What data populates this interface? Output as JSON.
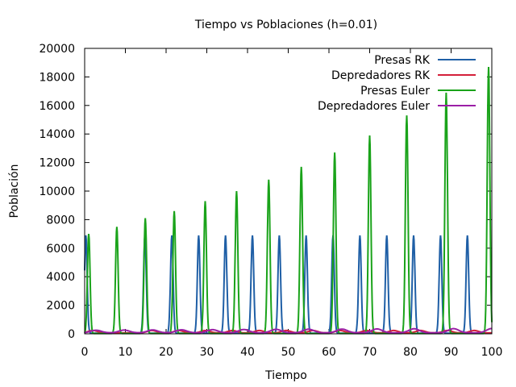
{
  "chart_data": {
    "type": "line",
    "title": "Tiempo vs Poblaciones (h=0.01)",
    "xlabel": "Tiempo",
    "ylabel": "Población",
    "xlim": [
      0,
      100
    ],
    "ylim": [
      0,
      20000
    ],
    "xticks": [
      0,
      10,
      20,
      30,
      40,
      50,
      60,
      70,
      80,
      90,
      100
    ],
    "yticks": [
      0,
      2000,
      4000,
      6000,
      8000,
      10000,
      12000,
      14000,
      16000,
      18000,
      20000
    ],
    "grid": false,
    "legend_position": "top-right",
    "series": [
      {
        "name": "Presas RK",
        "color": "#1f5fa6",
        "peaks": [
          {
            "t": 0.3,
            "v": 6900
          },
          {
            "t": 14.8,
            "v": 6900
          },
          {
            "t": 21.4,
            "v": 6900
          },
          {
            "t": 28.0,
            "v": 6900
          },
          {
            "t": 34.6,
            "v": 6900
          },
          {
            "t": 41.2,
            "v": 6900
          },
          {
            "t": 47.8,
            "v": 6900
          },
          {
            "t": 54.4,
            "v": 6900
          },
          {
            "t": 61.0,
            "v": 6900
          },
          {
            "t": 67.6,
            "v": 6900
          },
          {
            "t": 74.2,
            "v": 6900
          },
          {
            "t": 80.8,
            "v": 6900
          },
          {
            "t": 87.4,
            "v": 6900
          },
          {
            "t": 94.0,
            "v": 6900
          }
        ]
      },
      {
        "name": "Depredadores RK",
        "color": "#d41f3a",
        "peaks": [
          {
            "t": 2.0,
            "v": 230
          },
          {
            "t": 16.5,
            "v": 230
          },
          {
            "t": 23.1,
            "v": 230
          },
          {
            "t": 29.7,
            "v": 230
          },
          {
            "t": 36.3,
            "v": 230
          },
          {
            "t": 42.9,
            "v": 230
          },
          {
            "t": 49.5,
            "v": 230
          },
          {
            "t": 56.1,
            "v": 230
          },
          {
            "t": 62.7,
            "v": 230
          },
          {
            "t": 69.3,
            "v": 230
          },
          {
            "t": 75.9,
            "v": 230
          },
          {
            "t": 82.5,
            "v": 230
          },
          {
            "t": 89.1,
            "v": 230
          },
          {
            "t": 95.7,
            "v": 230
          }
        ]
      },
      {
        "name": "Presas Euler",
        "color": "#1aa31a",
        "peaks": [
          {
            "t": 1.0,
            "v": 7000
          },
          {
            "t": 7.9,
            "v": 7500
          },
          {
            "t": 14.9,
            "v": 8100
          },
          {
            "t": 22.0,
            "v": 8600
          },
          {
            "t": 29.6,
            "v": 9300
          },
          {
            "t": 37.3,
            "v": 10000
          },
          {
            "t": 45.2,
            "v": 10800
          },
          {
            "t": 53.2,
            "v": 11700
          },
          {
            "t": 61.4,
            "v": 12700
          },
          {
            "t": 70.0,
            "v": 13900
          },
          {
            "t": 79.1,
            "v": 15300
          },
          {
            "t": 88.8,
            "v": 16900
          },
          {
            "t": 99.2,
            "v": 18700
          }
        ]
      },
      {
        "name": "Depredadores Euler",
        "color": "#9b1fa6",
        "peaks": [
          {
            "t": 2.8,
            "v": 250
          },
          {
            "t": 9.7,
            "v": 260
          },
          {
            "t": 16.7,
            "v": 270
          },
          {
            "t": 23.8,
            "v": 280
          },
          {
            "t": 31.4,
            "v": 290
          },
          {
            "t": 39.1,
            "v": 300
          },
          {
            "t": 47.0,
            "v": 310
          },
          {
            "t": 55.0,
            "v": 320
          },
          {
            "t": 63.2,
            "v": 330
          },
          {
            "t": 71.8,
            "v": 340
          },
          {
            "t": 80.9,
            "v": 350
          },
          {
            "t": 90.6,
            "v": 360
          },
          {
            "t": 100.0,
            "v": 370
          }
        ]
      }
    ]
  }
}
